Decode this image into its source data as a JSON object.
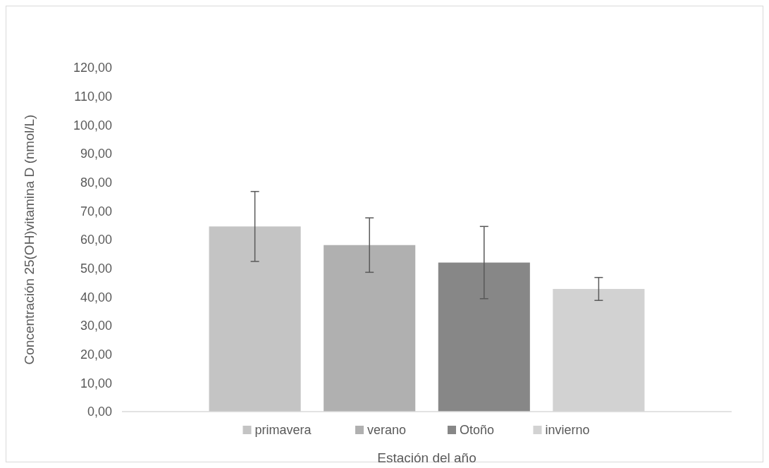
{
  "chart_data": {
    "type": "bar",
    "xlabel": "Estación del año",
    "ylabel": "Concentración 25(OH)vitamina D (nmol/L)",
    "categories": [
      null
    ],
    "series": [
      {
        "name": "primavera",
        "color": "#c4c4c4",
        "values": [
          64.6
        ],
        "errors": [
          12.2
        ]
      },
      {
        "name": "verano",
        "color": "#b0b0b0",
        "values": [
          58.1
        ],
        "errors": [
          9.5
        ]
      },
      {
        "name": "Otoño",
        "color": "#878787",
        "values": [
          52.0
        ],
        "errors": [
          12.6
        ]
      },
      {
        "name": "invierno",
        "color": "#d2d2d2",
        "values": [
          42.8
        ],
        "errors": [
          4.0
        ]
      }
    ],
    "ylim": [
      0,
      120
    ],
    "yticks": [
      {
        "value": 0,
        "label": "0,00"
      },
      {
        "value": 10,
        "label": "10,00"
      },
      {
        "value": 20,
        "label": "20,00"
      },
      {
        "value": 30,
        "label": "30,00"
      },
      {
        "value": 40,
        "label": "40,00"
      },
      {
        "value": 50,
        "label": "50,00"
      },
      {
        "value": 60,
        "label": "60,00"
      },
      {
        "value": 70,
        "label": "70,00"
      },
      {
        "value": 80,
        "label": "80,00"
      },
      {
        "value": 90,
        "label": "90,00"
      },
      {
        "value": 100,
        "label": "100,00"
      },
      {
        "value": 110,
        "label": "110,00"
      },
      {
        "value": 120,
        "label": "120,00"
      }
    ],
    "legend": "bottom"
  }
}
